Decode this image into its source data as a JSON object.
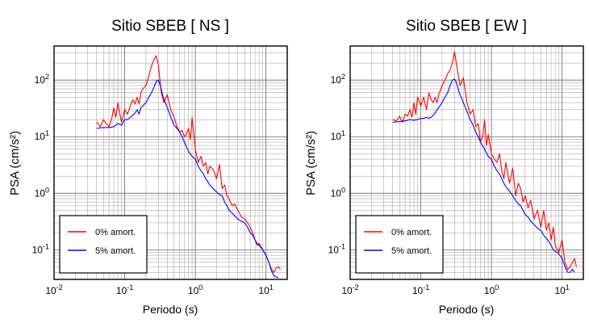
{
  "chart_data": [
    {
      "type": "line",
      "title": "Sitio SBEB [ NS ]",
      "xlabel": "Periodo (s)",
      "ylabel": "PSA (cm/s²)",
      "xscale": "log",
      "yscale": "log",
      "xlim": [
        0.01,
        20
      ],
      "ylim": [
        0.03,
        400
      ],
      "grid": true,
      "legend_position": "bottom-left",
      "x_ticks": [
        "10^-2",
        "10^-1",
        "10^0",
        "10^1"
      ],
      "y_ticks": [
        "10^-1",
        "10^0",
        "10^1",
        "10^2"
      ],
      "series": [
        {
          "name": "0% amort.",
          "color": "#ff0000",
          "points": [
            [
              0.04,
              18
            ],
            [
              0.045,
              15
            ],
            [
              0.05,
              20
            ],
            [
              0.055,
              17
            ],
            [
              0.06,
              15
            ],
            [
              0.065,
              20
            ],
            [
              0.07,
              32
            ],
            [
              0.075,
              22
            ],
            [
              0.08,
              40
            ],
            [
              0.085,
              26
            ],
            [
              0.09,
              18
            ],
            [
              0.1,
              30
            ],
            [
              0.11,
              25
            ],
            [
              0.12,
              35
            ],
            [
              0.13,
              45
            ],
            [
              0.14,
              38
            ],
            [
              0.15,
              50
            ],
            [
              0.16,
              38
            ],
            [
              0.17,
              60
            ],
            [
              0.18,
              70
            ],
            [
              0.2,
              80
            ],
            [
              0.22,
              120
            ],
            [
              0.24,
              180
            ],
            [
              0.26,
              230
            ],
            [
              0.28,
              270
            ],
            [
              0.3,
              180
            ],
            [
              0.33,
              60
            ],
            [
              0.36,
              40
            ],
            [
              0.4,
              55
            ],
            [
              0.45,
              30
            ],
            [
              0.5,
              22
            ],
            [
              0.55,
              15
            ],
            [
              0.6,
              12
            ],
            [
              0.65,
              13
            ],
            [
              0.7,
              10
            ],
            [
              0.75,
              11
            ],
            [
              0.8,
              14
            ],
            [
              0.85,
              9
            ],
            [
              0.9,
              22
            ],
            [
              1.0,
              6
            ],
            [
              1.1,
              3.5
            ],
            [
              1.2,
              4.5
            ],
            [
              1.3,
              3
            ],
            [
              1.4,
              3.5
            ],
            [
              1.5,
              2.2
            ],
            [
              1.6,
              3
            ],
            [
              1.8,
              2.6
            ],
            [
              2.0,
              1.8
            ],
            [
              2.2,
              3.2
            ],
            [
              2.4,
              1.2
            ],
            [
              2.6,
              1.4
            ],
            [
              2.8,
              0.9
            ],
            [
              3.0,
              0.8
            ],
            [
              3.3,
              0.6
            ],
            [
              3.6,
              0.65
            ],
            [
              4.0,
              0.5
            ],
            [
              4.5,
              0.38
            ],
            [
              5.0,
              0.35
            ],
            [
              5.5,
              0.3
            ],
            [
              6.0,
              0.25
            ],
            [
              6.5,
              0.2
            ],
            [
              7.0,
              0.15
            ],
            [
              7.5,
              0.12
            ],
            [
              8.0,
              0.13
            ],
            [
              9.0,
              0.1
            ],
            [
              10.0,
              0.08
            ],
            [
              11.0,
              0.06
            ],
            [
              12.0,
              0.045
            ],
            [
              13.0,
              0.04
            ],
            [
              14.0,
              0.048
            ],
            [
              15.0,
              0.05
            ],
            [
              16.0,
              0.045
            ]
          ]
        },
        {
          "name": "5% amort.",
          "color": "#0000ff",
          "points": [
            [
              0.04,
              14
            ],
            [
              0.05,
              14.5
            ],
            [
              0.06,
              14.5
            ],
            [
              0.07,
              15
            ],
            [
              0.08,
              17
            ],
            [
              0.09,
              16
            ],
            [
              0.1,
              20
            ],
            [
              0.11,
              20
            ],
            [
              0.12,
              22
            ],
            [
              0.13,
              24
            ],
            [
              0.14,
              26
            ],
            [
              0.15,
              30
            ],
            [
              0.16,
              25
            ],
            [
              0.17,
              33
            ],
            [
              0.18,
              35
            ],
            [
              0.2,
              40
            ],
            [
              0.22,
              50
            ],
            [
              0.24,
              60
            ],
            [
              0.26,
              75
            ],
            [
              0.28,
              95
            ],
            [
              0.3,
              100
            ],
            [
              0.32,
              80
            ],
            [
              0.35,
              50
            ],
            [
              0.4,
              33
            ],
            [
              0.45,
              22
            ],
            [
              0.5,
              16
            ],
            [
              0.55,
              14
            ],
            [
              0.6,
              12
            ],
            [
              0.65,
              10
            ],
            [
              0.7,
              8
            ],
            [
              0.8,
              5.5
            ],
            [
              0.9,
              4.5
            ],
            [
              1.0,
              4
            ],
            [
              1.1,
              3
            ],
            [
              1.2,
              2.5
            ],
            [
              1.3,
              2.2
            ],
            [
              1.4,
              1.8
            ],
            [
              1.5,
              1.6
            ],
            [
              1.6,
              1.4
            ],
            [
              1.8,
              1.2
            ],
            [
              2.0,
              1.05
            ],
            [
              2.2,
              0.95
            ],
            [
              2.4,
              0.9
            ],
            [
              2.6,
              0.7
            ],
            [
              2.8,
              0.6
            ],
            [
              3.0,
              0.5
            ],
            [
              3.3,
              0.45
            ],
            [
              3.6,
              0.4
            ],
            [
              4.0,
              0.35
            ],
            [
              4.5,
              0.32
            ],
            [
              5.0,
              0.3
            ],
            [
              5.5,
              0.25
            ],
            [
              6.0,
              0.2
            ],
            [
              6.5,
              0.18
            ],
            [
              7.0,
              0.15
            ],
            [
              7.5,
              0.13
            ],
            [
              8.0,
              0.12
            ],
            [
              9.0,
              0.1
            ],
            [
              10.0,
              0.08
            ],
            [
              11.0,
              0.06
            ],
            [
              12.0,
              0.042
            ],
            [
              13.0,
              0.035
            ],
            [
              14.0,
              0.033
            ],
            [
              15.0,
              0.032
            ]
          ]
        }
      ]
    },
    {
      "type": "line",
      "title": "Sitio SBEB [ EW ]",
      "xlabel": "Periodo (s)",
      "ylabel": "PSA (cm/s²)",
      "xscale": "log",
      "yscale": "log",
      "xlim": [
        0.01,
        20
      ],
      "ylim": [
        0.03,
        400
      ],
      "grid": true,
      "legend_position": "bottom-left",
      "x_ticks": [
        "10^-2",
        "10^-1",
        "10^0",
        "10^1"
      ],
      "y_ticks": [
        "10^-1",
        "10^0",
        "10^1",
        "10^2"
      ],
      "series": [
        {
          "name": "0% amort.",
          "color": "#ff0000",
          "points": [
            [
              0.04,
              20
            ],
            [
              0.045,
              19
            ],
            [
              0.05,
              23
            ],
            [
              0.055,
              18
            ],
            [
              0.06,
              25
            ],
            [
              0.065,
              23
            ],
            [
              0.07,
              30
            ],
            [
              0.075,
              22
            ],
            [
              0.08,
              40
            ],
            [
              0.085,
              25
            ],
            [
              0.09,
              50
            ],
            [
              0.1,
              35
            ],
            [
              0.11,
              50
            ],
            [
              0.12,
              30
            ],
            [
              0.13,
              60
            ],
            [
              0.14,
              45
            ],
            [
              0.15,
              40
            ],
            [
              0.16,
              50
            ],
            [
              0.17,
              40
            ],
            [
              0.18,
              55
            ],
            [
              0.2,
              80
            ],
            [
              0.22,
              100
            ],
            [
              0.24,
              130
            ],
            [
              0.26,
              150
            ],
            [
              0.28,
              200
            ],
            [
              0.3,
              320
            ],
            [
              0.33,
              150
            ],
            [
              0.36,
              80
            ],
            [
              0.4,
              110
            ],
            [
              0.45,
              40
            ],
            [
              0.5,
              25
            ],
            [
              0.55,
              30
            ],
            [
              0.6,
              15
            ],
            [
              0.65,
              17
            ],
            [
              0.7,
              8
            ],
            [
              0.75,
              10
            ],
            [
              0.8,
              20
            ],
            [
              0.85,
              7
            ],
            [
              0.9,
              11
            ],
            [
              1.0,
              5
            ],
            [
              1.1,
              4
            ],
            [
              1.2,
              3.5
            ],
            [
              1.3,
              5
            ],
            [
              1.4,
              2.5
            ],
            [
              1.5,
              1.8
            ],
            [
              1.6,
              3.5
            ],
            [
              1.8,
              1.5
            ],
            [
              2.0,
              2.8
            ],
            [
              2.2,
              0.9
            ],
            [
              2.4,
              1.5
            ],
            [
              2.6,
              1.2
            ],
            [
              2.8,
              0.7
            ],
            [
              3.0,
              0.9
            ],
            [
              3.3,
              0.55
            ],
            [
              3.6,
              0.75
            ],
            [
              4.0,
              0.35
            ],
            [
              4.5,
              0.5
            ],
            [
              5.0,
              0.25
            ],
            [
              5.5,
              0.5
            ],
            [
              6.0,
              0.22
            ],
            [
              6.5,
              0.3
            ],
            [
              7.0,
              0.15
            ],
            [
              7.5,
              0.25
            ],
            [
              8.0,
              0.12
            ],
            [
              9.0,
              0.09
            ],
            [
              10.0,
              0.15
            ],
            [
              11.0,
              0.06
            ],
            [
              12.0,
              0.045
            ],
            [
              13.0,
              0.05
            ],
            [
              14.0,
              0.06
            ],
            [
              15.0,
              0.07
            ],
            [
              16.0,
              0.05
            ]
          ]
        },
        {
          "name": "5% amort.",
          "color": "#0000ff",
          "points": [
            [
              0.04,
              18
            ],
            [
              0.05,
              18.5
            ],
            [
              0.06,
              19
            ],
            [
              0.07,
              20
            ],
            [
              0.08,
              19.5
            ],
            [
              0.09,
              20
            ],
            [
              0.1,
              21
            ],
            [
              0.11,
              21
            ],
            [
              0.12,
              22
            ],
            [
              0.13,
              21
            ],
            [
              0.14,
              22
            ],
            [
              0.15,
              24
            ],
            [
              0.16,
              26
            ],
            [
              0.17,
              30
            ],
            [
              0.18,
              33
            ],
            [
              0.2,
              40
            ],
            [
              0.22,
              50
            ],
            [
              0.24,
              60
            ],
            [
              0.26,
              80
            ],
            [
              0.28,
              100
            ],
            [
              0.3,
              105
            ],
            [
              0.32,
              90
            ],
            [
              0.35,
              60
            ],
            [
              0.4,
              40
            ],
            [
              0.45,
              28
            ],
            [
              0.5,
              20
            ],
            [
              0.55,
              16
            ],
            [
              0.6,
              12
            ],
            [
              0.65,
              10
            ],
            [
              0.7,
              8
            ],
            [
              0.8,
              6
            ],
            [
              0.9,
              4.5
            ],
            [
              1.0,
              4
            ],
            [
              1.1,
              3
            ],
            [
              1.2,
              2.5
            ],
            [
              1.3,
              2.2
            ],
            [
              1.4,
              1.8
            ],
            [
              1.5,
              1.5
            ],
            [
              1.6,
              1.3
            ],
            [
              1.8,
              1.1
            ],
            [
              2.0,
              0.9
            ],
            [
              2.2,
              0.75
            ],
            [
              2.4,
              0.65
            ],
            [
              2.6,
              0.6
            ],
            [
              2.8,
              0.5
            ],
            [
              3.0,
              0.42
            ],
            [
              3.3,
              0.38
            ],
            [
              3.6,
              0.32
            ],
            [
              4.0,
              0.28
            ],
            [
              4.5,
              0.24
            ],
            [
              5.0,
              0.22
            ],
            [
              5.5,
              0.18
            ],
            [
              6.0,
              0.16
            ],
            [
              6.5,
              0.14
            ],
            [
              7.0,
              0.12
            ],
            [
              7.5,
              0.1
            ],
            [
              8.0,
              0.095
            ],
            [
              9.0,
              0.085
            ],
            [
              10.0,
              0.07
            ],
            [
              11.0,
              0.05
            ],
            [
              12.0,
              0.04
            ],
            [
              13.0,
              0.04
            ],
            [
              14.0,
              0.045
            ],
            [
              15.0,
              0.04
            ]
          ]
        }
      ]
    }
  ]
}
